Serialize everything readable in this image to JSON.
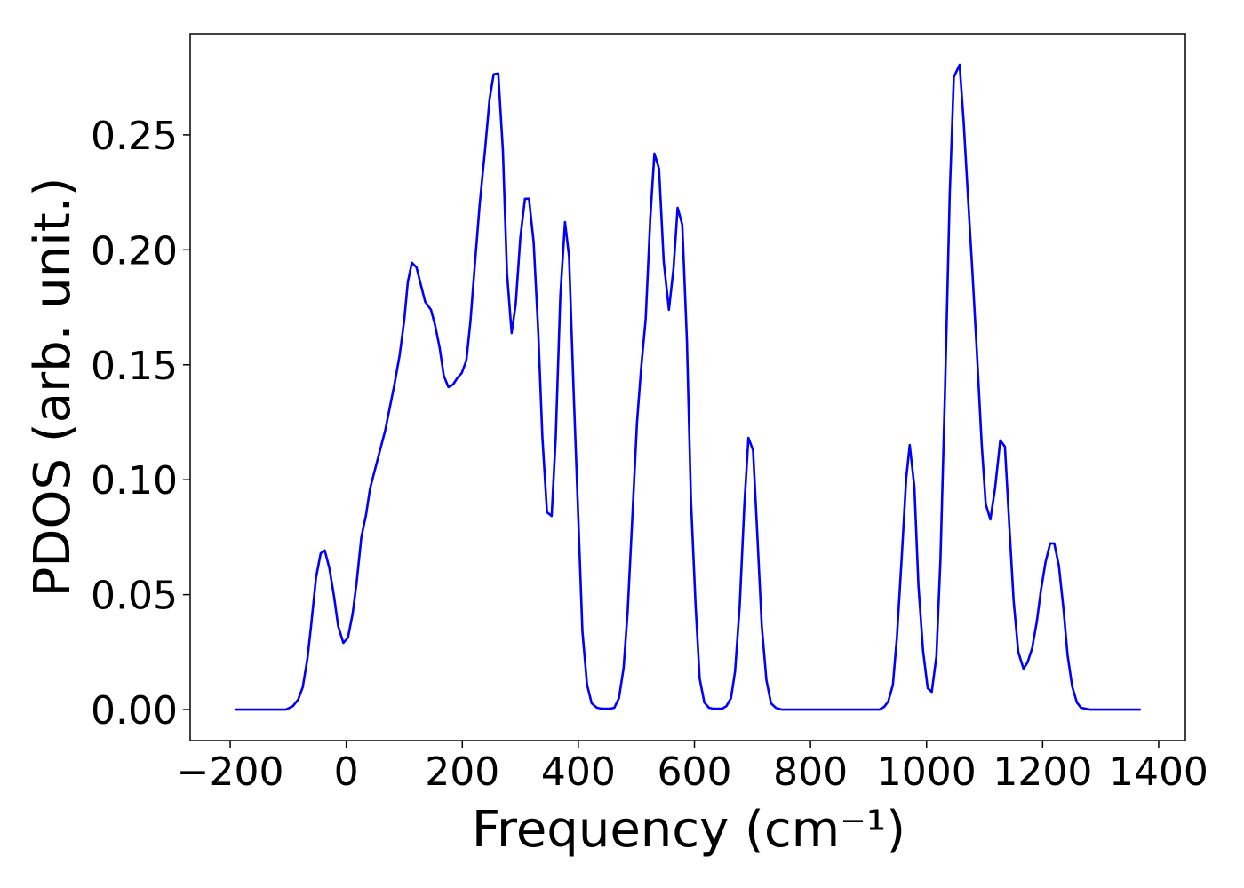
{
  "chart_data": {
    "type": "line",
    "xlabel": "Frequency (cm⁻¹)",
    "ylabel": "PDOS (arb. unit.)",
    "xlim": [
      -269,
      1446
    ],
    "ylim": [
      -0.0135,
      0.294
    ],
    "xticks": [
      {
        "value": -200,
        "label": "−200"
      },
      0,
      200,
      400,
      600,
      800,
      1000,
      1200,
      1400
    ],
    "yticks": [
      {
        "value": 0,
        "label": "0.00"
      },
      0.05,
      {
        "value": 0.1,
        "label": "0.10"
      },
      0.15,
      {
        "value": 0.2,
        "label": "0.20"
      },
      0.25
    ],
    "grid": false,
    "series": [
      {
        "color": "#0000ff",
        "x": [
          -191,
          -104,
          -92,
          -83,
          -75,
          -67,
          -61,
          -52,
          -44,
          -37,
          -29,
          -21,
          -14,
          -5,
          3,
          11,
          18,
          26,
          34,
          41,
          51,
          67,
          83,
          92,
          100,
          106,
          113,
          121,
          129,
          136,
          146,
          153,
          161,
          168,
          176,
          184,
          191,
          199,
          207,
          214,
          222,
          230,
          239,
          247,
          254,
          262,
          270,
          277,
          285,
          292,
          300,
          308,
          315,
          323,
          331,
          338,
          346,
          354,
          361,
          369,
          377,
          384,
          392,
          400,
          407,
          415,
          423,
          432,
          440,
          455,
          462,
          470,
          478,
          485,
          493,
          501,
          508,
          516,
          524,
          531,
          539,
          547,
          556,
          564,
          571,
          579,
          587,
          594,
          602,
          609,
          617,
          625,
          632,
          648,
          655,
          663,
          670,
          678,
          686,
          693,
          701,
          708,
          716,
          724,
          732,
          740,
          750,
          919,
          927,
          934,
          942,
          949,
          957,
          965,
          971,
          979,
          986,
          994,
          1002,
          1009,
          1017,
          1024,
          1032,
          1040,
          1047,
          1057,
          1064,
          1072,
          1079,
          1087,
          1095,
          1102,
          1110,
          1118,
          1127,
          1135,
          1142,
          1150,
          1158,
          1167,
          1174,
          1182,
          1190,
          1197,
          1205,
          1213,
          1220,
          1228,
          1236,
          1243,
          1251,
          1259,
          1266,
          1282,
          1369
        ],
        "values": [
          0,
          0,
          0.0015,
          0.0043,
          0.0097,
          0.022,
          0.0355,
          0.0576,
          0.068,
          0.0692,
          0.0614,
          0.0491,
          0.0363,
          0.029,
          0.0313,
          0.0417,
          0.0556,
          0.075,
          0.0846,
          0.0962,
          0.1059,
          0.1213,
          0.1414,
          0.1542,
          0.1696,
          0.1859,
          0.1944,
          0.1924,
          0.1843,
          0.1774,
          0.1739,
          0.1673,
          0.1573,
          0.1453,
          0.1403,
          0.1414,
          0.1441,
          0.1464,
          0.1519,
          0.1689,
          0.1947,
          0.2199,
          0.243,
          0.2655,
          0.2763,
          0.2767,
          0.243,
          0.1901,
          0.1638,
          0.1762,
          0.2052,
          0.2222,
          0.2222,
          0.2032,
          0.1638,
          0.1186,
          0.0858,
          0.0842,
          0.1182,
          0.1801,
          0.2121,
          0.1971,
          0.1376,
          0.0827,
          0.034,
          0.0108,
          0.0027,
          0.0008,
          0.0004,
          0.0004,
          0.0008,
          0.005,
          0.0182,
          0.0429,
          0.0835,
          0.1248,
          0.148,
          0.17,
          0.2141,
          0.2419,
          0.2353,
          0.1951,
          0.1739,
          0.192,
          0.2183,
          0.211,
          0.1607,
          0.0912,
          0.0452,
          0.0135,
          0.0031,
          0.0008,
          0.0004,
          0.0004,
          0.0015,
          0.005,
          0.0166,
          0.0452,
          0.0889,
          0.1182,
          0.1128,
          0.0777,
          0.0363,
          0.0128,
          0.0027,
          0.0008,
          0,
          0,
          0.0012,
          0.0035,
          0.0108,
          0.0317,
          0.0653,
          0.1008,
          0.1151,
          0.097,
          0.0541,
          0.0255,
          0.0093,
          0.0077,
          0.0232,
          0.0657,
          0.1403,
          0.2245,
          0.2751,
          0.2805,
          0.2554,
          0.2202,
          0.1905,
          0.1542,
          0.1155,
          0.0893,
          0.0827,
          0.0962,
          0.1171,
          0.1144,
          0.0827,
          0.0475,
          0.0251,
          0.0178,
          0.0205,
          0.0267,
          0.0383,
          0.0518,
          0.0641,
          0.0723,
          0.0723,
          0.0626,
          0.0437,
          0.0236,
          0.01,
          0.0031,
          0.0008,
          0,
          0
        ]
      }
    ]
  }
}
